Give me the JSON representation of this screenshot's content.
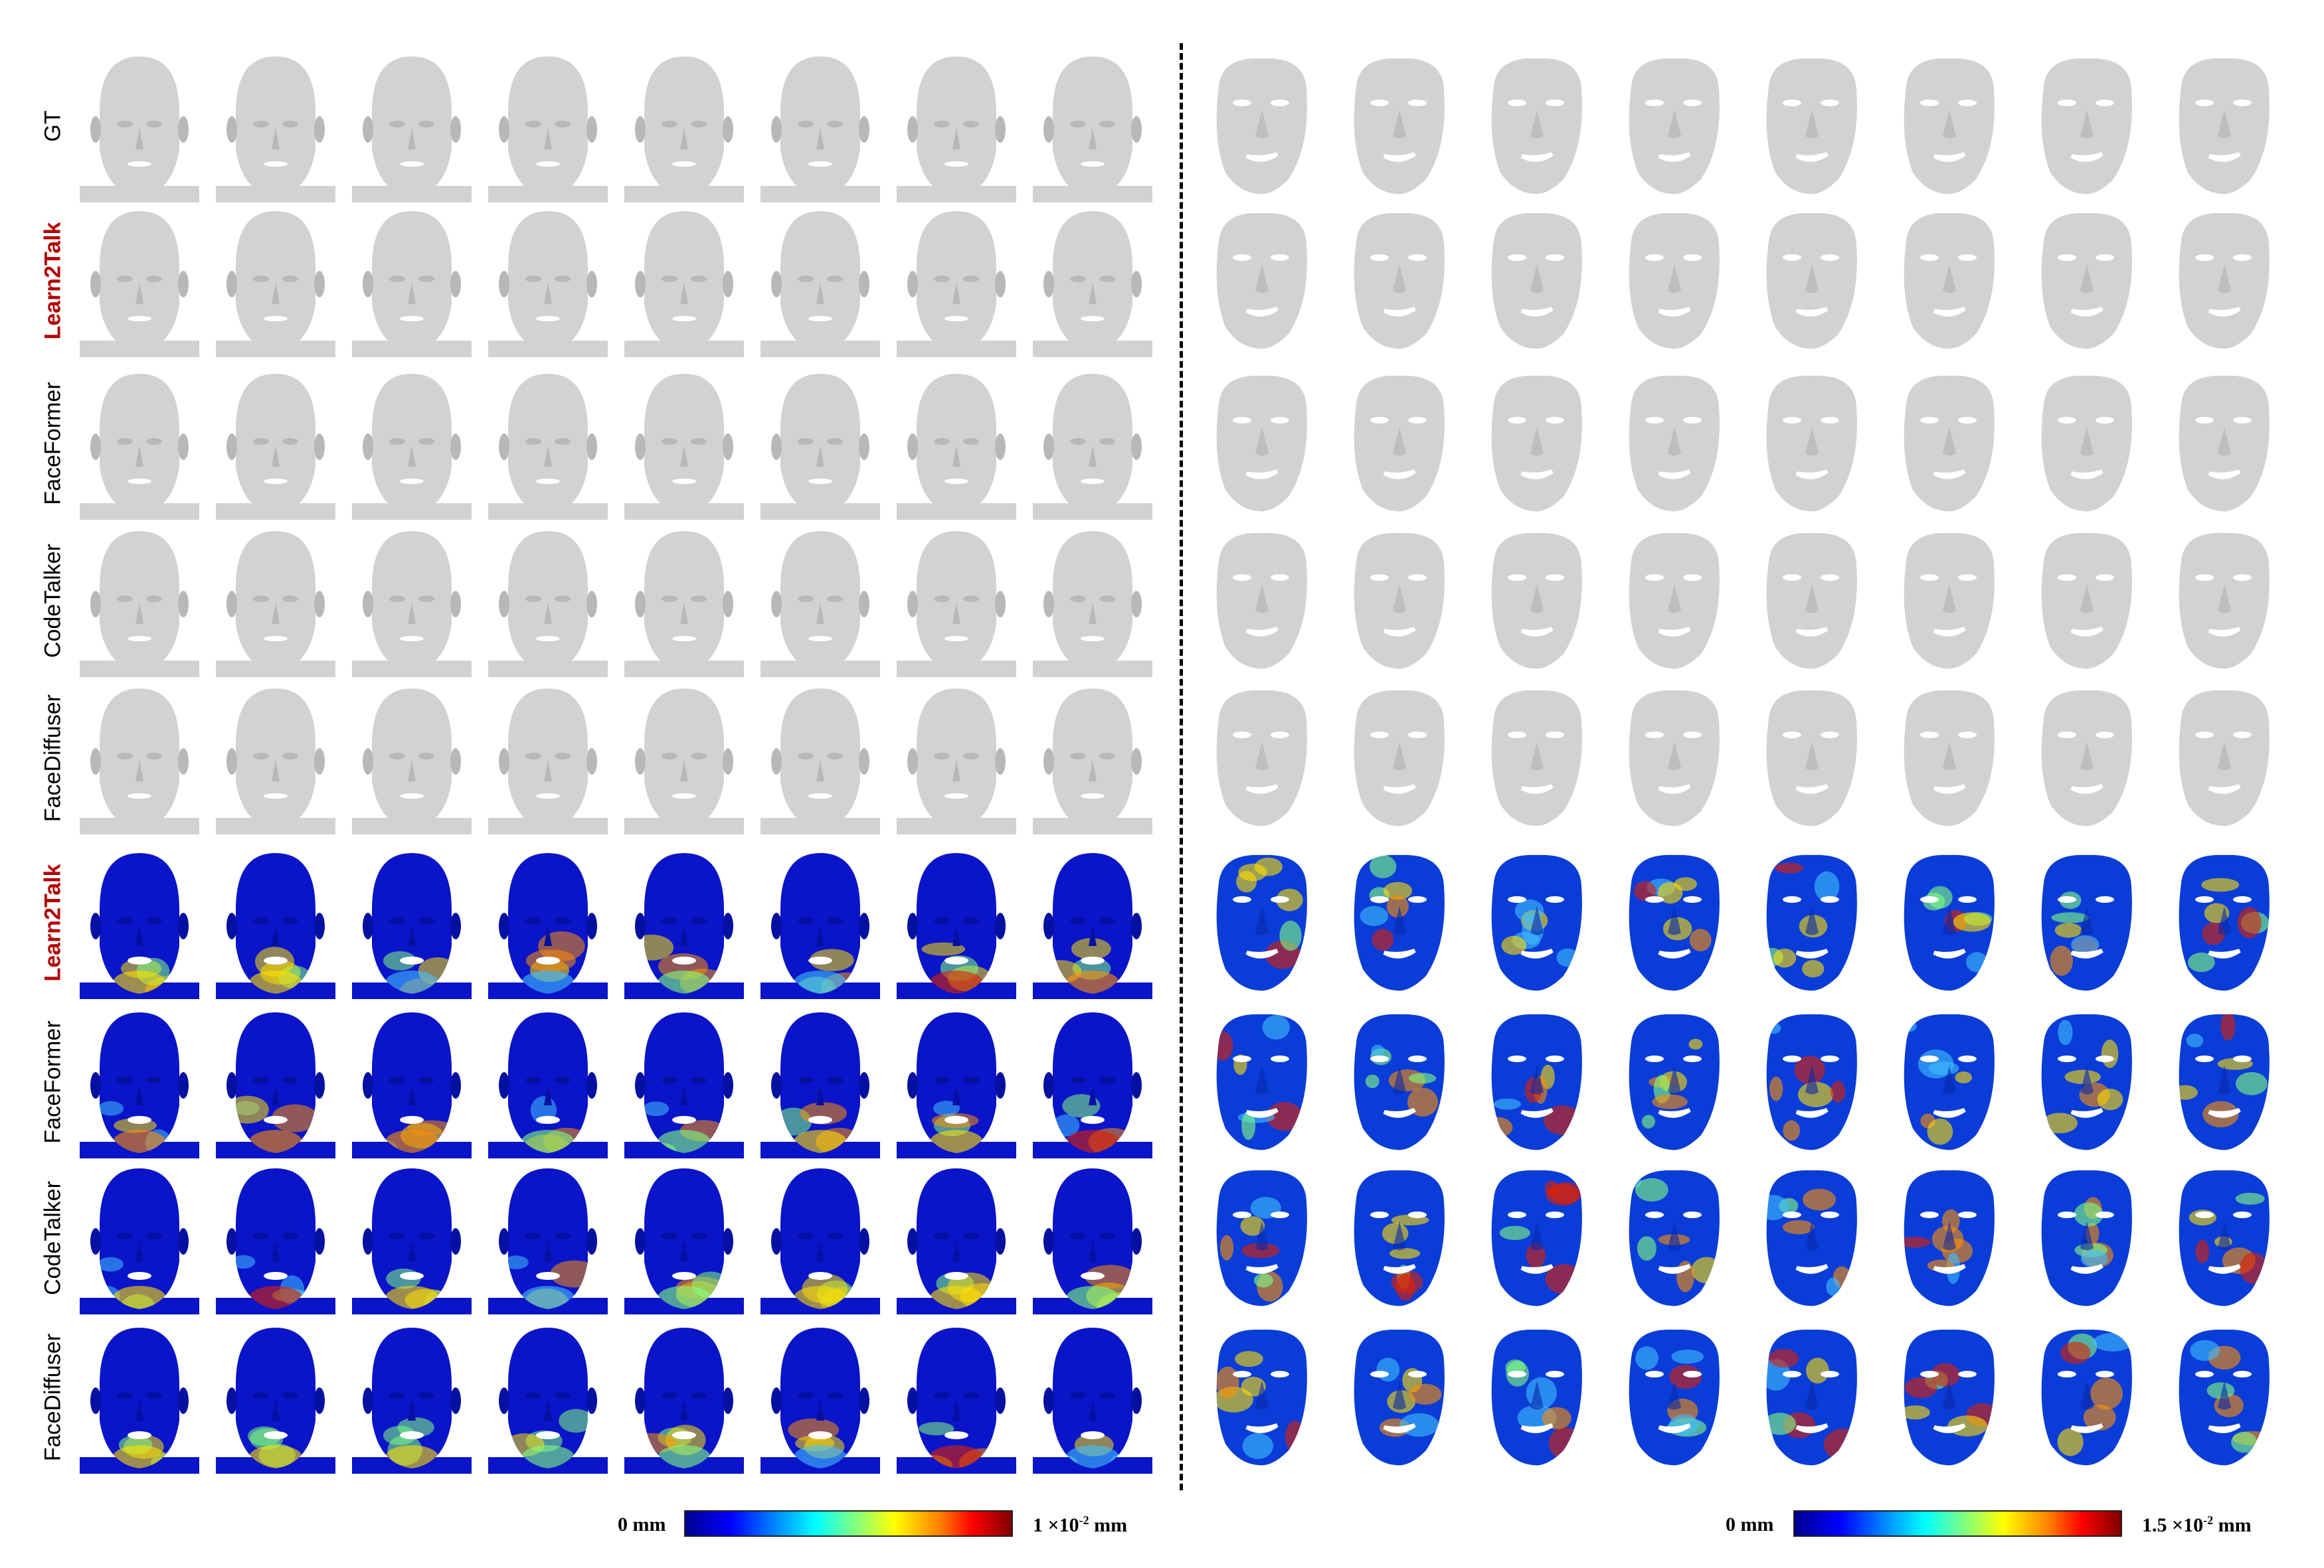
{
  "row_labels": [
    {
      "text": "GT",
      "highlight": false
    },
    {
      "text": "Learn2Talk",
      "highlight": true
    },
    {
      "text": "FaceFormer",
      "highlight": false
    },
    {
      "text": "CodeTalker",
      "highlight": false
    },
    {
      "text": "FaceDiffuser",
      "highlight": false
    },
    {
      "text": "Learn2Talk",
      "highlight": true
    },
    {
      "text": "FaceFormer",
      "highlight": false
    },
    {
      "text": "CodeTalker",
      "highlight": false
    },
    {
      "text": "FaceDiffuser",
      "highlight": false
    }
  ],
  "colorbars": {
    "left": {
      "min_label": "0 mm",
      "max_prefix": "1 ×10",
      "max_exp": "-2",
      "max_unit": " mm"
    },
    "right": {
      "min_label": "0 mm",
      "max_prefix": "1.5 ×10",
      "max_exp": "-2",
      "max_unit": " mm"
    }
  },
  "colors": {
    "mesh_gray": "#c8c8c8",
    "jet_low": "#0000c8",
    "jet_high": "#c80000"
  }
}
